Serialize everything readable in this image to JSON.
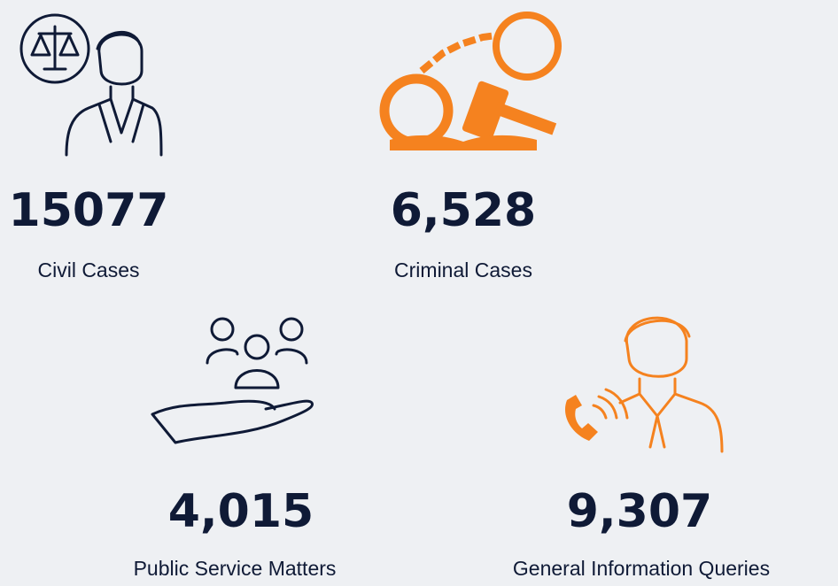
{
  "items": [
    {
      "value": "15077",
      "label": "Civil Cases"
    },
    {
      "value": "6,528",
      "label": "Criminal Cases"
    },
    {
      "value": "4,015",
      "label": "Public Service Matters"
    },
    {
      "value": "9,307",
      "label": "General Information Queries"
    }
  ]
}
